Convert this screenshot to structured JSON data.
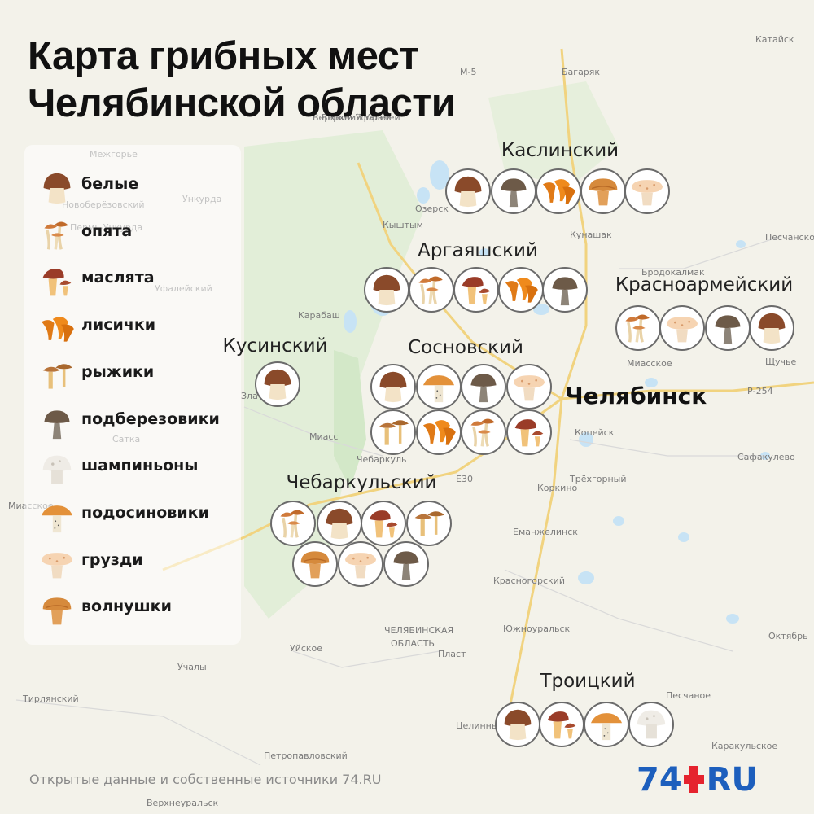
{
  "title": [
    "Карта грибных мест",
    "Челябинской области"
  ],
  "legend": [
    {
      "key": "beliy",
      "label": "белые"
    },
    {
      "key": "opyata",
      "label": "опята"
    },
    {
      "key": "maslyata",
      "label": "маслята"
    },
    {
      "key": "lisichki",
      "label": "лисички"
    },
    {
      "key": "ryzhiki",
      "label": "рыжики"
    },
    {
      "key": "podberezoviki",
      "label": "подберезовики"
    },
    {
      "key": "shampinony",
      "label": "шампиньоны"
    },
    {
      "key": "podosinoviki",
      "label": "подосиновики"
    },
    {
      "key": "gruzdi",
      "label": "грузди"
    },
    {
      "key": "volnushki",
      "label": "волнушки"
    }
  ],
  "districts": [
    {
      "name": "Каслинский",
      "mushrooms": [
        "beliy",
        "podberezoviki",
        "lisichki",
        "volnushki",
        "gruzdi"
      ]
    },
    {
      "name": "Аргаяшский",
      "mushrooms": [
        "beliy",
        "opyata",
        "maslyata",
        "lisichki",
        "podberezoviki"
      ]
    },
    {
      "name": "Красноармейский",
      "mushrooms": [
        "opyata",
        "gruzdi",
        "podberezoviki",
        "beliy"
      ]
    },
    {
      "name": "Кусинский",
      "mushrooms": [
        "beliy"
      ]
    },
    {
      "name": "Сосновский",
      "mushrooms": [
        "beliy",
        "podosinoviki",
        "podberezoviki",
        "gruzdi",
        "ryzhiki",
        "lisichki",
        "opyata",
        "maslyata"
      ]
    },
    {
      "name": "Чебаркульский",
      "mushrooms": [
        "opyata",
        "beliy",
        "maslyata",
        "ryzhiki",
        "volnushki",
        "gruzdi",
        "podberezoviki"
      ]
    },
    {
      "name": "Троицкий",
      "mushrooms": [
        "beliy",
        "maslyata",
        "podosinoviki",
        "shampinony"
      ]
    }
  ],
  "city": "Челябинск",
  "map_labels": [
    "Катайск",
    "М-5",
    "Багаряк",
    "Верхний Уфалей",
    "Озерск",
    "Кыштым",
    "Кунашак",
    "Бродокалмак",
    "Песчанское",
    "Миасское",
    "Щучье",
    "Р-254",
    "Карабаш",
    "Уфалейский",
    "Златоуст",
    "Сатка",
    "Миасс",
    "Чебаркуль",
    "Е30",
    "Коркино",
    "Копейск",
    "Сафакулево",
    "Еманжелинск",
    "Красногорский",
    "Южноуральск",
    "Октябрь",
    "Уйское",
    "Пласт",
    "Учалы",
    "Тирлянский",
    "Песчаное",
    "Целинный",
    "Каракульское",
    "Петропавловский",
    "Верхнеуральск",
    "ЧЕЛЯБИНСКАЯ",
    "ОБЛАСТЬ",
    "Межгорье",
    "Новоберёзовский",
    "Ункурда",
    "Миасское",
    "Трёхгорный",
    "Пермь-Ункурда",
    "Верхний Уфалей"
  ],
  "footer": "Открытые данные и собственные источники 74.RU",
  "logo": {
    "number": "74",
    "domain": "RU"
  },
  "colors": {
    "background": "#f3f2ea",
    "forest": "#dfeed6",
    "water": "#bfe0f5",
    "road": "#f4d88a",
    "badge_border": "#6b6b6b",
    "logo_blue": "#1d5fbd",
    "logo_red": "#e5232e"
  }
}
